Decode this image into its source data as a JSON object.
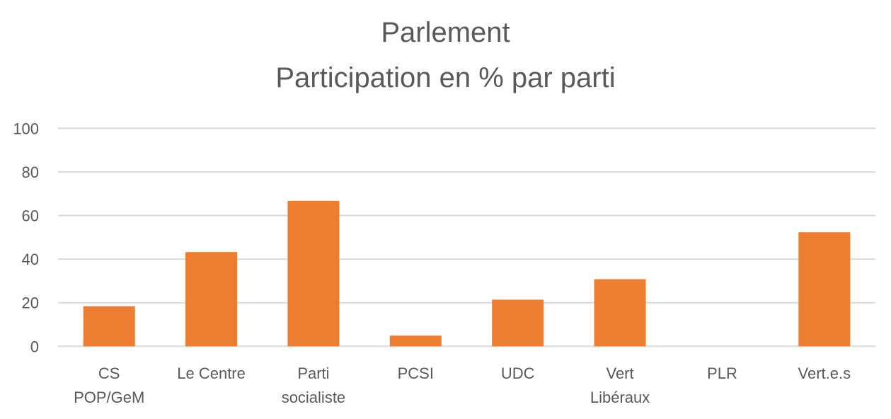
{
  "chart_data": {
    "type": "bar",
    "title": [
      "Parlement",
      "Participation en % par parti"
    ],
    "xlabel": "",
    "ylabel": "",
    "ylim": [
      0,
      100
    ],
    "yticks": [
      0,
      20,
      40,
      60,
      80,
      100
    ],
    "grid": true,
    "legend": "none",
    "categories": [
      [
        "CS",
        "POP/GeM"
      ],
      [
        "Le Centre"
      ],
      [
        "Parti",
        "socialiste"
      ],
      [
        "PCSI"
      ],
      [
        "UDC"
      ],
      [
        "Vert",
        "Libéraux"
      ],
      [
        "PLR"
      ],
      [
        "Vert.e.s"
      ]
    ],
    "values": [
      18.4,
      43.2,
      66.7,
      4.9,
      21.4,
      30.8,
      0,
      52.3
    ],
    "bar_color": "#ED7D31",
    "grid_color": "#D9D9D9"
  }
}
